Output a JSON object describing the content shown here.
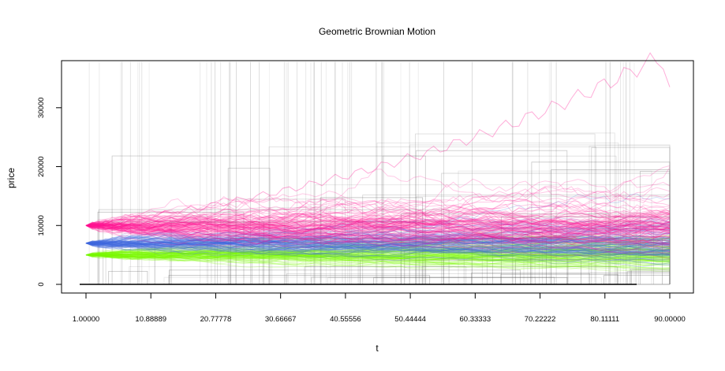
{
  "chart_data": {
    "type": "line",
    "title": "Geometric Brownian Motion",
    "xlabel": "t",
    "ylabel": "price",
    "xlim": [
      1,
      90
    ],
    "ylim": [
      0,
      38000
    ],
    "x_ticks": [
      1,
      10.88889,
      20.77778,
      30.66667,
      40.55556,
      50.44444,
      60.33333,
      70.22222,
      80.11111,
      90
    ],
    "x_tick_labels": [
      "1.00000",
      "10.88889",
      "20.77778",
      "30.66667",
      "40.55556",
      "50.44444",
      "60.33333",
      "70.22222",
      "80.11111",
      "90.00000"
    ],
    "y_ticks": [
      0,
      10000,
      20000,
      30000
    ],
    "y_tick_labels": [
      "0",
      "10000",
      "20000",
      "30000"
    ],
    "grid": false,
    "series_groups": [
      {
        "start_value": 10000,
        "color": "#ff1493",
        "path_count": 100,
        "end_range": [
          5000,
          34000
        ]
      },
      {
        "start_value": 7000,
        "color": "#4169e1",
        "path_count": 100,
        "end_range": [
          3500,
          24000
        ]
      },
      {
        "start_value": 5000,
        "color": "#7cfc00",
        "path_count": 100,
        "end_range": [
          2000,
          9000
        ]
      }
    ],
    "highlighted_max_path_peak": 38000,
    "highlighted_max_path_end": 33500,
    "baseline_value": 0
  }
}
